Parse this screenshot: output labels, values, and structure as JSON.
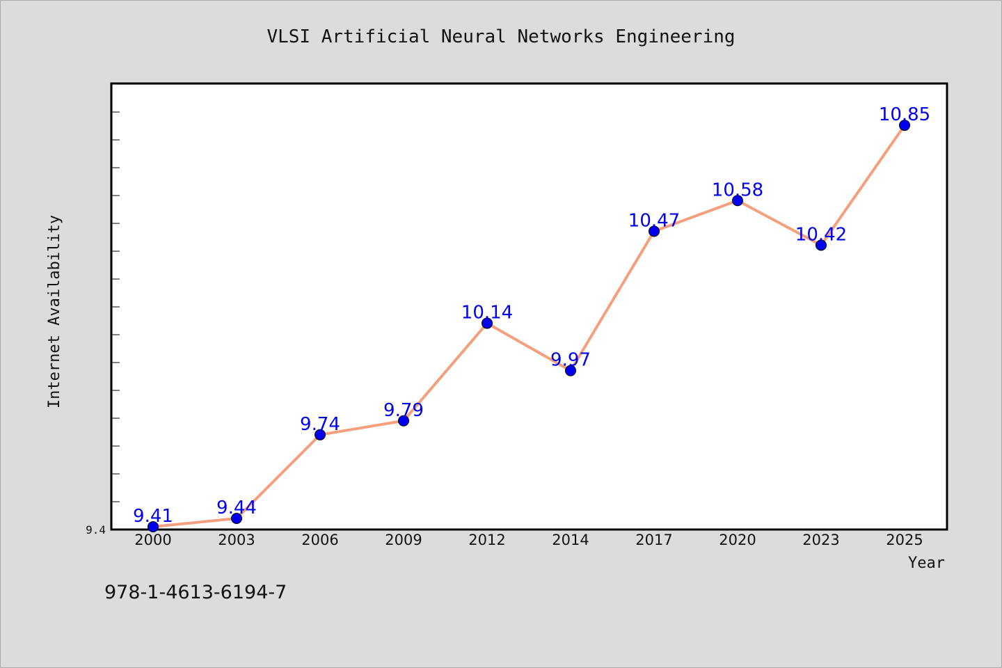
{
  "chart_data": {
    "type": "line",
    "title": "VLSI Artificial Neural Networks Engineering",
    "xlabel": "Year",
    "ylabel": "Internet Availability",
    "categories": [
      "2000",
      "2003",
      "2006",
      "2009",
      "2012",
      "2014",
      "2017",
      "2020",
      "2023",
      "2025"
    ],
    "series": [
      {
        "values": [
          9.41,
          9.44,
          9.74,
          9.79,
          10.14,
          9.97,
          10.47,
          10.58,
          10.42,
          10.85
        ]
      }
    ],
    "data_labels": [
      "9.41",
      "9.44",
      "9.74",
      "9.79",
      "10.14",
      "9.97",
      "10.47",
      "10.58",
      "10.42",
      "10.85"
    ],
    "ylim": [
      9.4,
      11.0
    ],
    "y_tick_labels": [
      "9.4"
    ],
    "grid": false,
    "legend": "none",
    "colors": {
      "line": "#f4a07f",
      "marker": "#0000ee",
      "data_label": "#0000ee",
      "plot_background": "#ffffff",
      "figure_background": "#dcdcdc"
    }
  },
  "footer": {
    "isbn": "978-1-4613-6194-7"
  }
}
